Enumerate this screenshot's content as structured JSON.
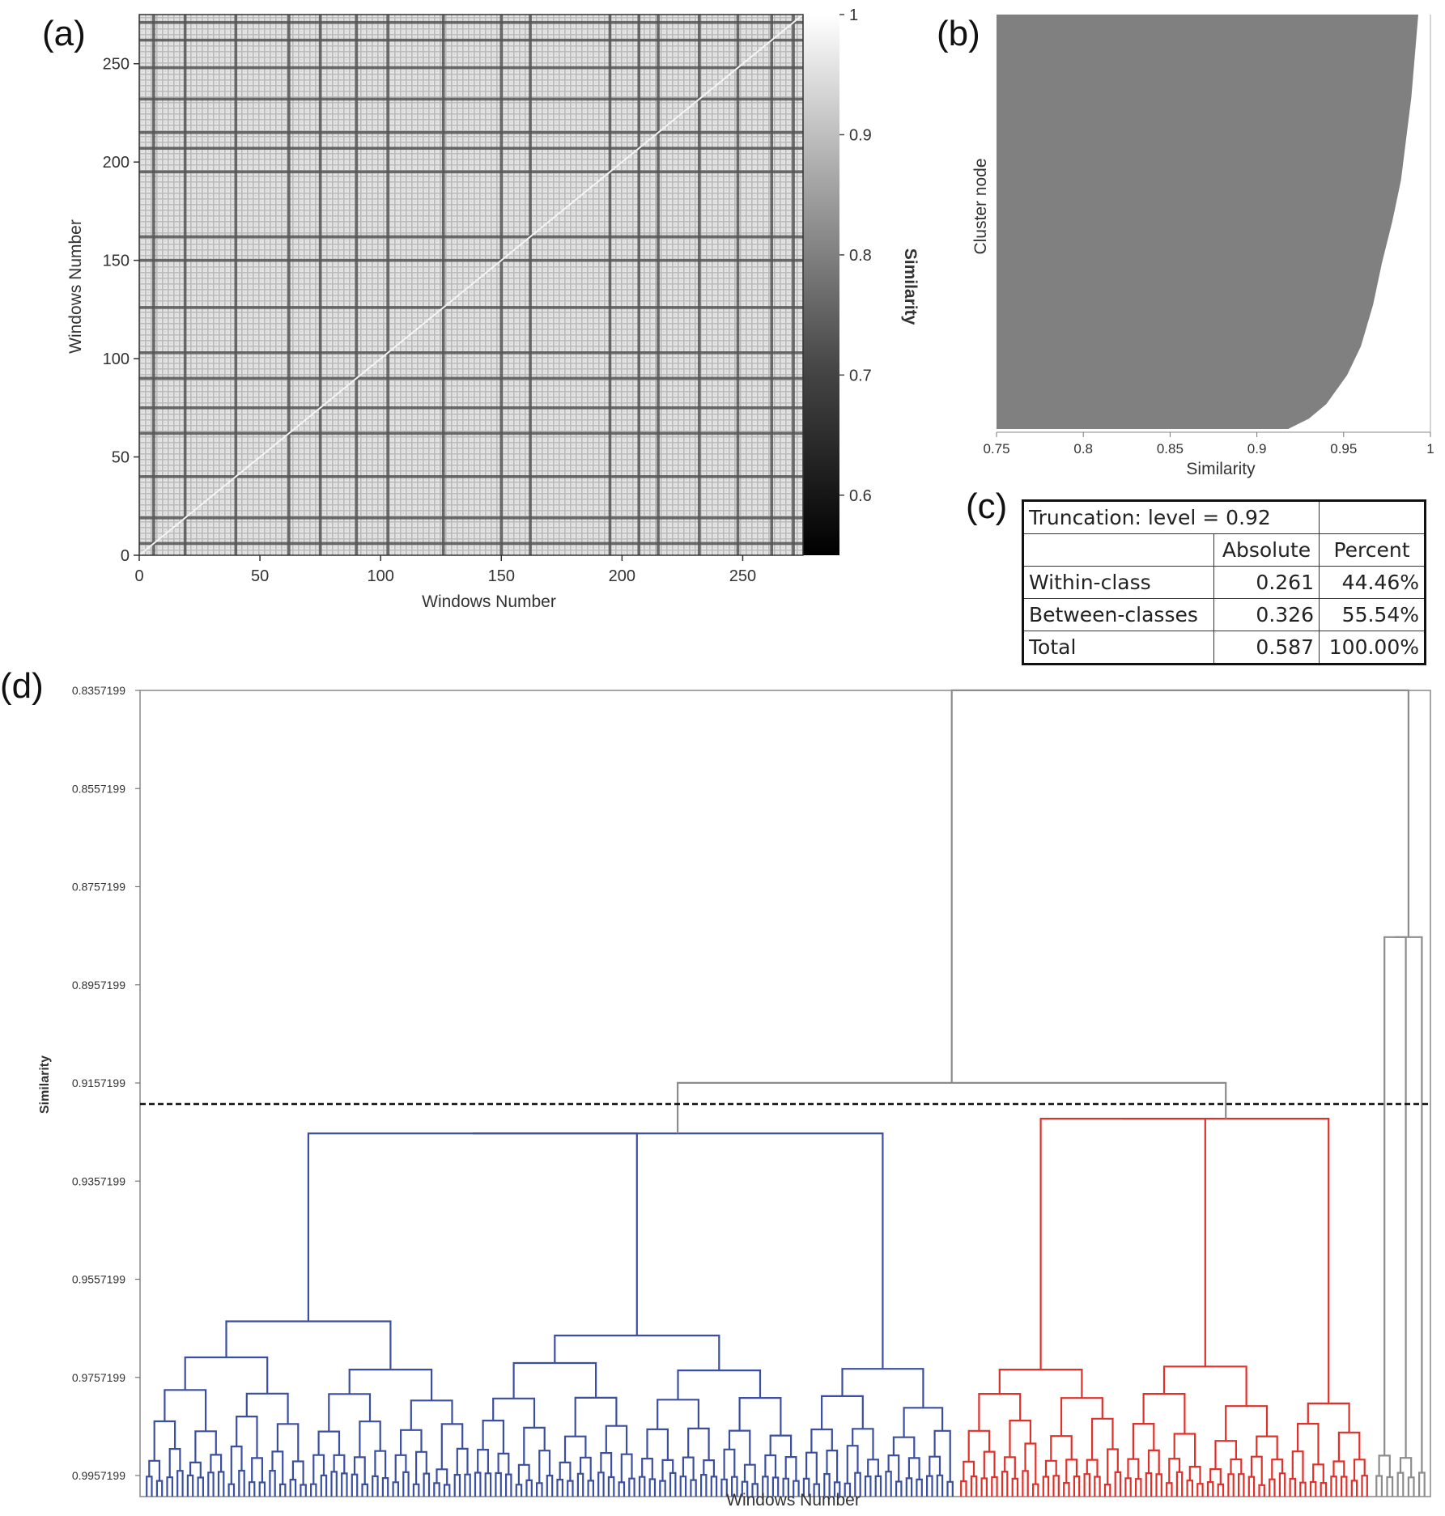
{
  "panels": {
    "a": "(a)",
    "b": "(b)",
    "c": "(c)",
    "d": "(d)"
  },
  "colors": {
    "blue": "#3b4fa0",
    "red": "#e0302a",
    "gray": "#8c8c8c",
    "bar_gray": "#808080"
  },
  "chart_data": [
    {
      "id": "a",
      "type": "heatmap",
      "xlabel": "Windows Number",
      "ylabel": "Windows Number",
      "xlim": [
        0,
        275
      ],
      "ylim": [
        0,
        275
      ],
      "xticks": [
        0,
        50,
        100,
        150,
        200,
        250
      ],
      "yticks": [
        0,
        50,
        100,
        150,
        200,
        250
      ],
      "colorbar": {
        "label": "Similarity",
        "range": [
          0.55,
          1.0
        ],
        "ticks": [
          0.6,
          0.7,
          0.8,
          0.9,
          1
        ],
        "tick_labels": [
          "0.6",
          "0.7",
          "0.8",
          "0.9",
          "1"
        ]
      },
      "dark_lines": [
        6,
        19,
        40,
        62,
        75,
        90,
        103,
        126,
        150,
        162,
        195,
        207,
        215,
        232,
        248,
        262,
        271
      ]
    },
    {
      "id": "b",
      "type": "area",
      "xlabel": "Similarity",
      "ylabel": "Cluster node",
      "xlim": [
        0.75,
        1.0
      ],
      "xticks": [
        0.75,
        0.8,
        0.85,
        0.9,
        0.95,
        1
      ],
      "tick_labels": [
        "0.75",
        "0.8",
        "0.85",
        "0.9",
        "0.95",
        "1"
      ],
      "curve": [
        [
          0.993,
          1.0
        ],
        [
          0.991,
          0.9
        ],
        [
          0.989,
          0.8
        ],
        [
          0.986,
          0.7
        ],
        [
          0.983,
          0.6
        ],
        [
          0.978,
          0.5
        ],
        [
          0.972,
          0.4
        ],
        [
          0.967,
          0.3
        ],
        [
          0.96,
          0.2
        ],
        [
          0.952,
          0.13
        ],
        [
          0.94,
          0.06
        ],
        [
          0.93,
          0.025
        ],
        [
          0.918,
          0.0
        ]
      ]
    },
    {
      "id": "c",
      "type": "table",
      "title": "Truncation: level = 0.92",
      "columns": [
        "Absolute",
        "Percent"
      ],
      "rows": [
        {
          "label": "Within-class",
          "absolute": "0.261",
          "percent": "44.46%"
        },
        {
          "label": "Between-classes",
          "absolute": "0.326",
          "percent": "55.54%"
        },
        {
          "label": "Total",
          "absolute": "0.587",
          "percent": "100.00%"
        }
      ]
    },
    {
      "id": "d",
      "type": "dendrogram",
      "xlabel": "Windows Number",
      "ylabel": "Similarity",
      "ylim": [
        0.8357199,
        0.9957199
      ],
      "yticks": [
        "0.8357199",
        "0.8557199",
        "0.8757199",
        "0.8957199",
        "0.9157199",
        "0.9357199",
        "0.9557199",
        "0.9757199",
        "0.9957199"
      ],
      "truncation_level": 0.92,
      "clusters": [
        {
          "color": "blue",
          "leaves": 168,
          "root_similarity": 0.926
        },
        {
          "color": "red",
          "leaves": 87,
          "root_similarity": 0.923
        },
        {
          "color": "gray",
          "leaves": 12,
          "root_similarity": 0.886
        }
      ],
      "merges": {
        "blue_red": 0.9157,
        "all": 0.8357
      }
    }
  ]
}
